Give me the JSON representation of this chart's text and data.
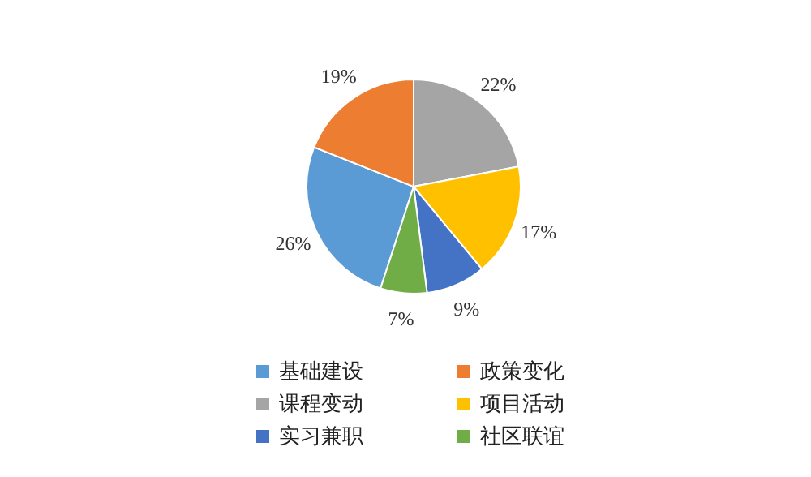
{
  "chart_data": {
    "type": "pie",
    "categories": [
      "基础建设",
      "政策变化",
      "课程变动",
      "项目活动",
      "实习兼职",
      "社区联谊"
    ],
    "values": [
      26,
      19,
      22,
      17,
      9,
      7
    ],
    "value_labels": [
      "26%",
      "19%",
      "22%",
      "17%",
      "9%",
      "7%"
    ],
    "colors": [
      "#5b9bd5",
      "#ed7d31",
      "#a5a5a5",
      "#ffc000",
      "#4472c4",
      "#70ad47"
    ],
    "legend": "bottom"
  }
}
